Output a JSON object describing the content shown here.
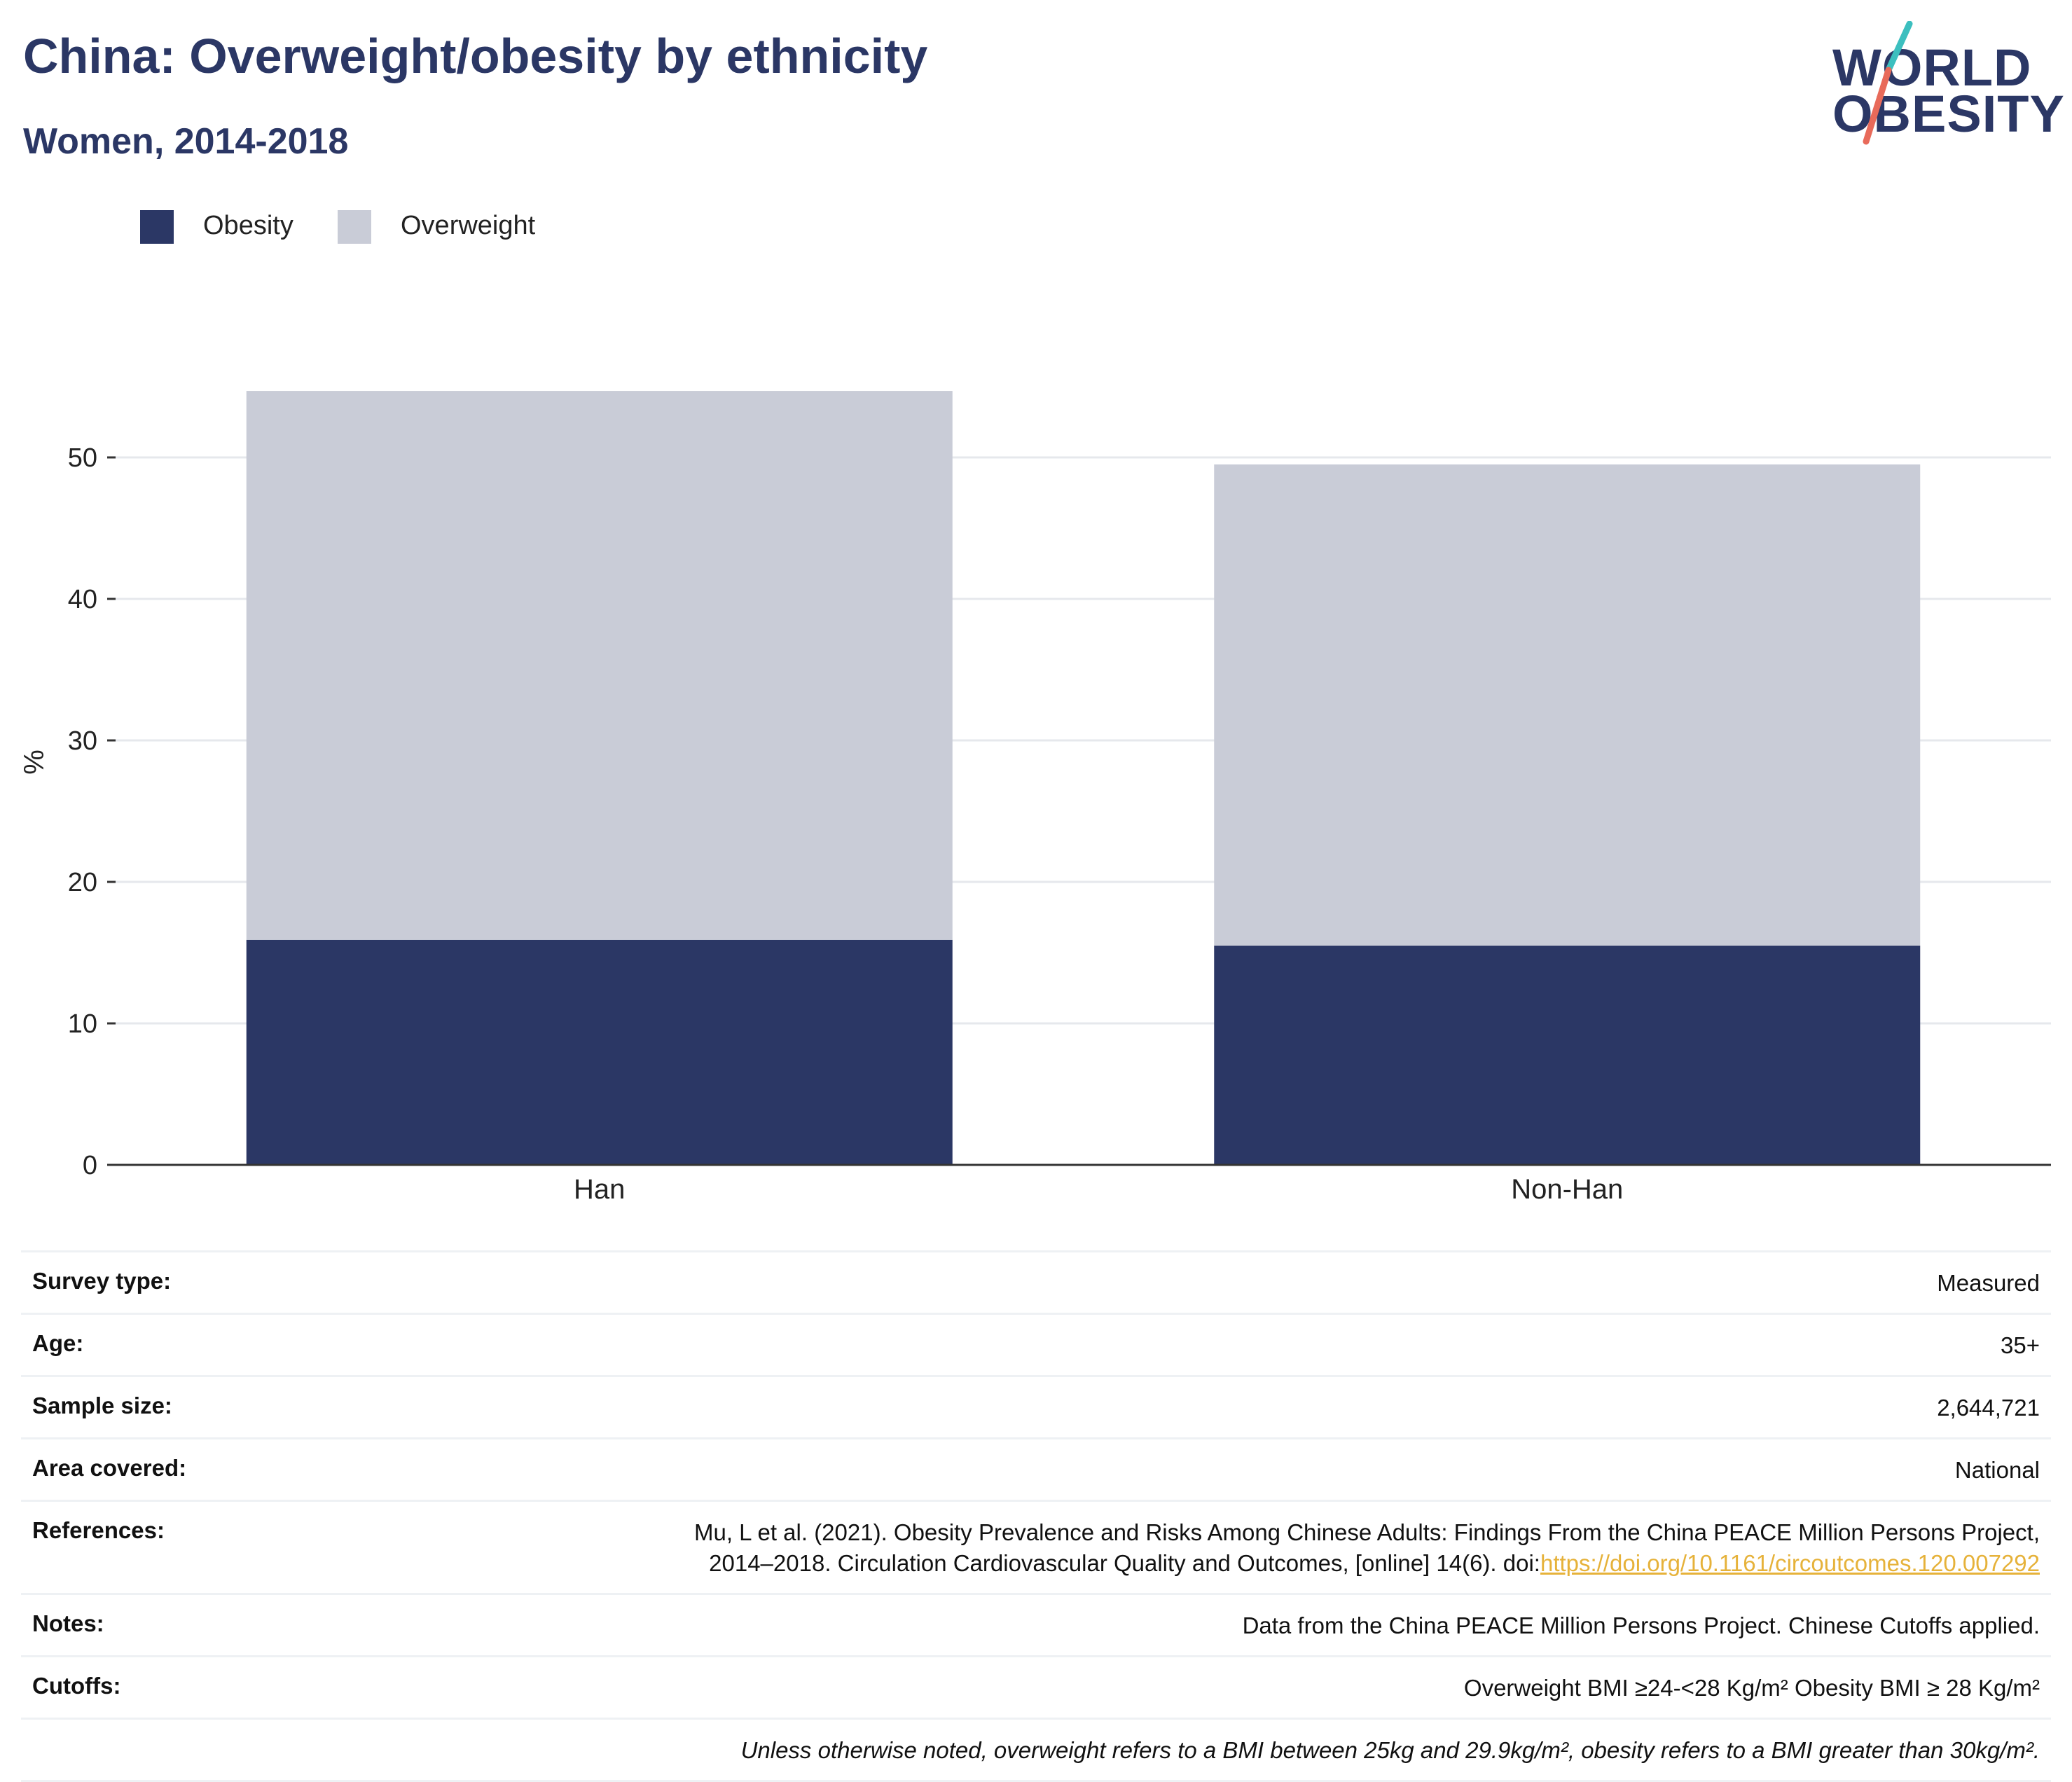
{
  "header": {
    "title": "China: Overweight/obesity by ethnicity",
    "subtitle": "Women, 2014-2018"
  },
  "logo": {
    "line1": "WORLD",
    "line2": "OBESITY"
  },
  "colors": {
    "obesity": "#2b3765",
    "overweight": "#c9ccd7",
    "axis": "#333333",
    "grid": "#e6e8ec",
    "link": "#e6b23a",
    "logo_teal": "#3cbfbf",
    "logo_coral": "#e86a5a"
  },
  "chart_data": {
    "type": "bar",
    "stacked": true,
    "categories": [
      "Han",
      "Non-Han"
    ],
    "series": [
      {
        "name": "Obesity",
        "values": [
          15.9,
          15.5
        ]
      },
      {
        "name": "Overweight",
        "values": [
          38.8,
          34.0
        ]
      }
    ],
    "ylabel": "%",
    "xlabel": "",
    "ylim": [
      0,
      55
    ],
    "yticks": [
      0,
      10,
      20,
      30,
      40,
      50
    ],
    "grid": true,
    "legend_position": "top-left"
  },
  "info": {
    "survey_type": {
      "label": "Survey type:",
      "value": "Measured"
    },
    "age": {
      "label": "Age:",
      "value": "35+"
    },
    "sample_size": {
      "label": "Sample size:",
      "value": "2,644,721"
    },
    "area_covered": {
      "label": "Area covered:",
      "value": "National"
    },
    "references": {
      "label": "References:",
      "text_line1": "Mu, L et al. (2021). Obesity Prevalence and Risks Among Chinese Adults: Findings From the China PEACE Million Persons Project,",
      "text_line2": "2014–2018. Circulation Cardiovascular Quality and Outcomes, [online] 14(6). doi:",
      "link": "https://doi.org/10.1161/circoutcomes.120.007292"
    },
    "notes": {
      "label": "Notes:",
      "value": "Data from the China PEACE Million Persons Project. Chinese Cutoffs applied."
    },
    "cutoffs": {
      "label": "Cutoffs:",
      "value": "Overweight BMI ≥24-<28 Kg/m² Obesity BMI ≥ 28 Kg/m²"
    },
    "footnote": "Unless otherwise noted, overweight refers to a BMI between 25kg and 29.9kg/m², obesity refers to a BMI greater than 30kg/m²."
  }
}
